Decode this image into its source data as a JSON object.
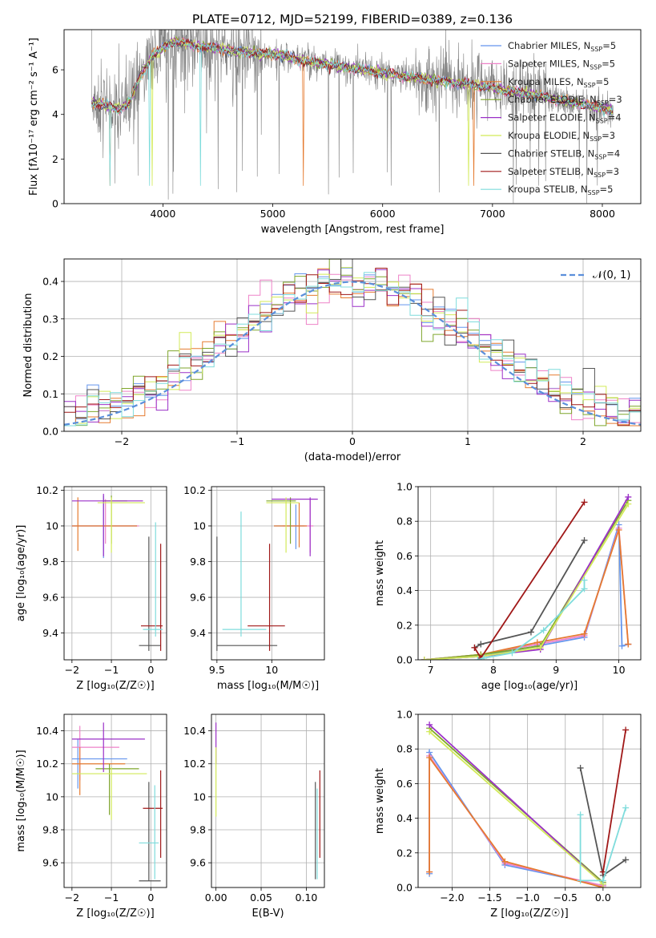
{
  "colors": {
    "chabrier_miles": "#6495ed",
    "salpeter_miles": "#ee82c8",
    "kroupa_miles": "#e57b30",
    "chabrier_elodie": "#7fa62c",
    "salpeter_elodie": "#9b30c8",
    "kroupa_elodie": "#d2ea58",
    "chabrier_stelib": "#555555",
    "salpeter_stelib": "#a01818",
    "kroupa_stelib": "#7fdcdc",
    "data": "#808080",
    "gauss": "#5b8fdb"
  },
  "chart_data": [
    {
      "id": "spectrum",
      "type": "line",
      "title": "PLATE=0712, MJD=52199, FIBERID=0389, z=0.136",
      "xlabel": "wavelength [Angstrom, rest frame]",
      "ylabel": "Flux [fλ10⁻¹⁷ erg cm⁻² s⁻¹ A⁻¹]",
      "xlim": [
        3100,
        8350
      ],
      "ylim": [
        0,
        7.8
      ],
      "xticks": [
        "4000",
        "5000",
        "6000",
        "7000",
        "8000"
      ],
      "yticks": [
        "0",
        "2",
        "4",
        "6"
      ],
      "legend_position": "upper-right",
      "series": [
        {
          "name": "Chabrier MILES, N_SSP=5",
          "color": "chabrier_miles"
        },
        {
          "name": "Salpeter MILES, N_SSP=5",
          "color": "salpeter_miles"
        },
        {
          "name": "Kroupa MILES, N_SSP=5",
          "color": "kroupa_miles"
        },
        {
          "name": "Chabrier ELODIE, N_SSP=3",
          "color": "chabrier_elodie"
        },
        {
          "name": "Salpeter ELODIE, N_SSP=4",
          "color": "salpeter_elodie"
        },
        {
          "name": "Kroupa ELODIE, N_SSP=3",
          "color": "kroupa_elodie"
        },
        {
          "name": "Chabrier STELIB, N_SSP=4",
          "color": "chabrier_stelib"
        },
        {
          "name": "Salpeter STELIB, N_SSP=3",
          "color": "salpeter_stelib"
        },
        {
          "name": "Kroupa STELIB, N_SSP=5",
          "color": "kroupa_stelib"
        }
      ],
      "continuum": {
        "x": [
          3400,
          3500,
          3600,
          3700,
          3800,
          3900,
          4000,
          4100,
          4200,
          4300,
          4500,
          4700,
          5000,
          5300,
          5600,
          5900,
          6200,
          6500,
          6800,
          7100,
          7400,
          7700,
          8100
        ],
        "y": [
          4.5,
          4.4,
          4.2,
          4.6,
          5.8,
          6.6,
          7.0,
          7.25,
          7.2,
          7.05,
          6.95,
          6.8,
          6.7,
          6.4,
          6.15,
          5.95,
          5.7,
          5.5,
          5.35,
          5.1,
          4.85,
          4.55,
          4.2
        ]
      }
    },
    {
      "id": "residuals",
      "type": "step",
      "xlabel": "(data-model)/error",
      "ylabel": "Normed distribution",
      "xlim": [
        -2.5,
        2.5
      ],
      "ylim": [
        0,
        0.46
      ],
      "xticks": [
        "−2",
        "−1",
        "0",
        "1",
        "2"
      ],
      "yticks": [
        "0.0",
        "0.1",
        "0.2",
        "0.3",
        "0.4"
      ],
      "legend": "𝒩(0, 1)",
      "legend_position": "upper-right",
      "bins": 50,
      "bin_range": [
        -2.5,
        2.5
      ]
    },
    {
      "id": "age-vs-z",
      "type": "errorbar",
      "xlabel": "Z [log₁₀(Z/Z☉)]",
      "ylabel": "age  [log₁₀(age/yr)]",
      "xlim": [
        -2.2,
        0.4
      ],
      "ylim": [
        9.25,
        10.22
      ],
      "xticks": [
        -2,
        -1,
        0
      ],
      "yticks": [
        9.4,
        9.6,
        9.8,
        10.0,
        10.2
      ],
      "points": [
        {
          "c": "chabrier_miles",
          "x": -1.2,
          "xlo": -2.0,
          "xhi": -0.35,
          "y": 10.0,
          "ylo": 9.82,
          "yhi": 10.17
        },
        {
          "c": "salpeter_miles",
          "x": -1.15,
          "xlo": -2.0,
          "xhi": -0.3,
          "y": 10.0,
          "ylo": 9.9,
          "yhi": 10.15
        },
        {
          "c": "kroupa_miles",
          "x": -1.85,
          "xlo": -2.0,
          "xhi": -0.35,
          "y": 10.0,
          "ylo": 9.86,
          "yhi": 10.16
        },
        {
          "c": "chabrier_elodie",
          "x": -1.0,
          "xlo": -1.2,
          "xhi": -0.6,
          "y": 10.14,
          "ylo": 9.9,
          "yhi": 10.17
        },
        {
          "c": "salpeter_elodie",
          "x": -1.2,
          "xlo": -2.0,
          "xhi": -0.2,
          "y": 10.14,
          "ylo": 9.83,
          "yhi": 10.18
        },
        {
          "c": "kroupa_elodie",
          "x": -1.0,
          "xlo": -1.35,
          "xhi": -0.15,
          "y": 10.13,
          "ylo": 9.85,
          "yhi": 10.16
        },
        {
          "c": "chabrier_stelib",
          "x": -0.05,
          "xlo": -0.3,
          "xhi": 0.25,
          "y": 9.33,
          "ylo": 9.3,
          "yhi": 9.94
        },
        {
          "c": "salpeter_stelib",
          "x": 0.25,
          "xlo": -0.25,
          "xhi": 0.3,
          "y": 9.44,
          "ylo": 9.3,
          "yhi": 9.9
        },
        {
          "c": "kroupa_stelib",
          "x": 0.12,
          "xlo": -0.2,
          "xhi": 0.3,
          "y": 9.42,
          "ylo": 9.38,
          "yhi": 10.02
        }
      ]
    },
    {
      "id": "age-vs-mass",
      "type": "errorbar",
      "xlabel": "mass [log₁₀(M/M☉)]",
      "ylabel": "",
      "xlim": [
        9.45,
        10.48
      ],
      "ylim": [
        9.25,
        10.22
      ],
      "xticks": [
        9.5,
        10.0
      ],
      "yticks": [
        9.4,
        9.6,
        9.8,
        10.0,
        10.2
      ],
      "points": [
        {
          "c": "chabrier_miles",
          "x": 10.22,
          "xlo": 10.02,
          "xhi": 10.3,
          "y": 10.0,
          "ylo": 9.87,
          "yhi": 10.12
        },
        {
          "c": "salpeter_miles",
          "x": 10.35,
          "xlo": 10.1,
          "xhi": 10.38,
          "y": 10.0,
          "ylo": 9.85,
          "yhi": 10.15
        },
        {
          "c": "kroupa_miles",
          "x": 10.25,
          "xlo": 10.02,
          "xhi": 10.32,
          "y": 10.0,
          "ylo": 9.88,
          "yhi": 10.13
        },
        {
          "c": "chabrier_elodie",
          "x": 10.17,
          "xlo": 9.95,
          "xhi": 10.22,
          "y": 10.14,
          "ylo": 9.9,
          "yhi": 10.16
        },
        {
          "c": "salpeter_elodie",
          "x": 10.35,
          "xlo": 10.0,
          "xhi": 10.42,
          "y": 10.15,
          "ylo": 9.83,
          "yhi": 10.16
        },
        {
          "c": "kroupa_elodie",
          "x": 10.13,
          "xlo": 9.95,
          "xhi": 10.25,
          "y": 10.13,
          "ylo": 9.85,
          "yhi": 10.16
        },
        {
          "c": "chabrier_stelib",
          "x": 9.5,
          "xlo": 9.5,
          "xhi": 10.05,
          "y": 9.33,
          "ylo": 9.3,
          "yhi": 9.94
        },
        {
          "c": "salpeter_stelib",
          "x": 9.98,
          "xlo": 9.78,
          "xhi": 10.12,
          "y": 9.44,
          "ylo": 9.3,
          "yhi": 9.9
        },
        {
          "c": "kroupa_stelib",
          "x": 9.72,
          "xlo": 9.55,
          "xhi": 9.95,
          "y": 9.42,
          "ylo": 9.38,
          "yhi": 10.08
        }
      ]
    },
    {
      "id": "weight-vs-age",
      "type": "line",
      "xlabel": "age  [log₁₀(age/yr)]",
      "ylabel": "mass weight",
      "xlim": [
        6.8,
        10.35
      ],
      "ylim": [
        0,
        1
      ],
      "xticks": [
        7,
        8,
        9,
        10
      ],
      "yticks": [
        "0.0",
        "0.2",
        "0.4",
        "0.6",
        "0.8",
        "1.0"
      ],
      "series": [
        {
          "c": "chabrier_miles",
          "x": [
            6.9,
            7.8,
            8.7,
            9.45,
            10.0,
            10.05,
            10.15
          ],
          "y": [
            0.0,
            0.02,
            0.08,
            0.13,
            0.78,
            0.08,
            0.09
          ]
        },
        {
          "c": "salpeter_miles",
          "x": [
            6.9,
            7.8,
            8.7,
            9.45,
            10.0,
            10.15
          ],
          "y": [
            0.0,
            0.03,
            0.09,
            0.14,
            0.76,
            0.09
          ]
        },
        {
          "c": "kroupa_miles",
          "x": [
            6.9,
            7.8,
            8.7,
            9.45,
            10.0,
            10.15
          ],
          "y": [
            0.0,
            0.03,
            0.1,
            0.15,
            0.75,
            0.09
          ]
        },
        {
          "c": "chabrier_elodie",
          "x": [
            6.9,
            7.8,
            8.75,
            10.15
          ],
          "y": [
            0.0,
            0.03,
            0.08,
            0.92
          ]
        },
        {
          "c": "salpeter_elodie",
          "x": [
            6.9,
            7.8,
            8.75,
            10.15
          ],
          "y": [
            0.0,
            0.02,
            0.06,
            0.94
          ]
        },
        {
          "c": "kroupa_elodie",
          "x": [
            6.9,
            7.8,
            8.75,
            10.15
          ],
          "y": [
            0.0,
            0.02,
            0.07,
            0.9
          ]
        },
        {
          "c": "chabrier_stelib",
          "x": [
            7.7,
            7.8,
            8.6,
            9.45
          ],
          "y": [
            0.07,
            0.09,
            0.16,
            0.69
          ]
        },
        {
          "c": "salpeter_stelib",
          "x": [
            7.7,
            7.8,
            9.45
          ],
          "y": [
            0.07,
            0.01,
            0.91
          ]
        },
        {
          "c": "kroupa_stelib",
          "x": [
            7.75,
            7.85,
            8.3,
            8.8,
            9.45,
            9.45
          ],
          "y": [
            0.0,
            0.01,
            0.04,
            0.17,
            0.41,
            0.46
          ]
        }
      ]
    },
    {
      "id": "mass-vs-z",
      "type": "errorbar",
      "xlabel": "Z [log₁₀(Z/Z☉)]",
      "ylabel": "mass [log₁₀(M/M☉)]",
      "xlim": [
        -2.2,
        0.4
      ],
      "ylim": [
        9.45,
        10.5
      ],
      "xticks": [
        -2,
        -1,
        0
      ],
      "yticks": [
        9.6,
        9.8,
        10.0,
        10.2,
        10.4
      ],
      "points": [
        {
          "c": "chabrier_miles",
          "x": -1.85,
          "xlo": -2.0,
          "xhi": -0.6,
          "y": 10.23,
          "ylo": 10.05,
          "yhi": 10.35
        },
        {
          "c": "salpeter_miles",
          "x": -1.8,
          "xlo": -2.0,
          "xhi": -0.8,
          "y": 10.3,
          "ylo": 10.1,
          "yhi": 10.43
        },
        {
          "c": "kroupa_miles",
          "x": -1.8,
          "xlo": -2.0,
          "xhi": -0.65,
          "y": 10.2,
          "ylo": 10.01,
          "yhi": 10.3
        },
        {
          "c": "chabrier_elodie",
          "x": -1.05,
          "xlo": -1.4,
          "xhi": -0.3,
          "y": 10.17,
          "ylo": 9.89,
          "yhi": 10.2
        },
        {
          "c": "salpeter_elodie",
          "x": -1.2,
          "xlo": -2.0,
          "xhi": -0.15,
          "y": 10.35,
          "ylo": 10.15,
          "yhi": 10.45
        },
        {
          "c": "kroupa_elodie",
          "x": -1.0,
          "xlo": -2.0,
          "xhi": -0.1,
          "y": 10.14,
          "ylo": 9.86,
          "yhi": 10.18
        },
        {
          "c": "chabrier_stelib",
          "x": -0.05,
          "xlo": -0.3,
          "xhi": 0.25,
          "y": 9.49,
          "ylo": 9.49,
          "yhi": 10.09
        },
        {
          "c": "salpeter_stelib",
          "x": 0.25,
          "xlo": -0.2,
          "xhi": 0.3,
          "y": 9.93,
          "ylo": 9.63,
          "yhi": 10.16
        },
        {
          "c": "kroupa_stelib",
          "x": 0.1,
          "xlo": -0.3,
          "xhi": 0.2,
          "y": 9.72,
          "ylo": 9.5,
          "yhi": 10.07
        }
      ]
    },
    {
      "id": "mass-vs-ebv",
      "type": "errorbar",
      "xlabel": "E(B-V)",
      "ylabel": "",
      "xlim": [
        -0.005,
        0.12
      ],
      "ylim": [
        9.45,
        10.5
      ],
      "xticks": [
        "0.00",
        "0.05",
        "0.10"
      ],
      "yticks": [
        9.6,
        9.8,
        10.0,
        10.2,
        10.4
      ],
      "points": [
        {
          "c": "salpeter_elodie",
          "x": 0.0,
          "y": 10.35,
          "ylo": 10.2,
          "yhi": 10.45
        },
        {
          "c": "kroupa_elodie",
          "x": 0.0,
          "y": 10.1,
          "ylo": 9.88,
          "yhi": 10.3
        },
        {
          "c": "chabrier_stelib",
          "x": 0.11,
          "y": 9.9,
          "ylo": 9.5,
          "yhi": 10.09
        },
        {
          "c": "kroupa_stelib",
          "x": 0.112,
          "y": 9.72,
          "ylo": 9.5,
          "yhi": 10.05
        },
        {
          "c": "salpeter_stelib",
          "x": 0.115,
          "y": 9.93,
          "ylo": 9.63,
          "yhi": 10.16
        }
      ]
    },
    {
      "id": "weight-vs-z",
      "type": "line",
      "xlabel": "Z [log₁₀(Z/Z☉)]",
      "ylabel": "mass weight",
      "xlim": [
        -2.45,
        0.5
      ],
      "ylim": [
        0,
        1
      ],
      "xticks": [
        "−2.0",
        "−1.5",
        "−1.0",
        "−0.5",
        "0.0"
      ],
      "yticks": [
        "0.0",
        "0.2",
        "0.4",
        "0.6",
        "0.8",
        "1.0"
      ],
      "series": [
        {
          "c": "chabrier_miles",
          "x": [
            -2.3,
            -2.3,
            -1.3,
            0.0,
            0.0
          ],
          "y": [
            0.08,
            0.78,
            0.13,
            0.01,
            0.02
          ]
        },
        {
          "c": "salpeter_miles",
          "x": [
            -2.3,
            -2.3,
            -1.3,
            0.0
          ],
          "y": [
            0.09,
            0.76,
            0.14,
            0.01
          ]
        },
        {
          "c": "kroupa_miles",
          "x": [
            -2.3,
            -2.3,
            -1.3,
            0.0
          ],
          "y": [
            0.09,
            0.75,
            0.15,
            0.0
          ]
        },
        {
          "c": "chabrier_elodie",
          "x": [
            -2.3,
            0.0
          ],
          "y": [
            0.92,
            0.03
          ]
        },
        {
          "c": "salpeter_elodie",
          "x": [
            -2.3,
            0.0
          ],
          "y": [
            0.94,
            0.02
          ]
        },
        {
          "c": "kroupa_elodie",
          "x": [
            -2.3,
            0.0
          ],
          "y": [
            0.9,
            0.02
          ]
        },
        {
          "c": "chabrier_stelib",
          "x": [
            -0.3,
            0.0,
            0.3
          ],
          "y": [
            0.69,
            0.07,
            0.16
          ]
        },
        {
          "c": "salpeter_stelib",
          "x": [
            0.0,
            0.3
          ],
          "y": [
            0.09,
            0.91
          ]
        },
        {
          "c": "kroupa_stelib",
          "x": [
            -0.3,
            -0.3,
            0.0,
            0.3
          ],
          "y": [
            0.42,
            0.04,
            0.04,
            0.46
          ]
        }
      ]
    }
  ]
}
